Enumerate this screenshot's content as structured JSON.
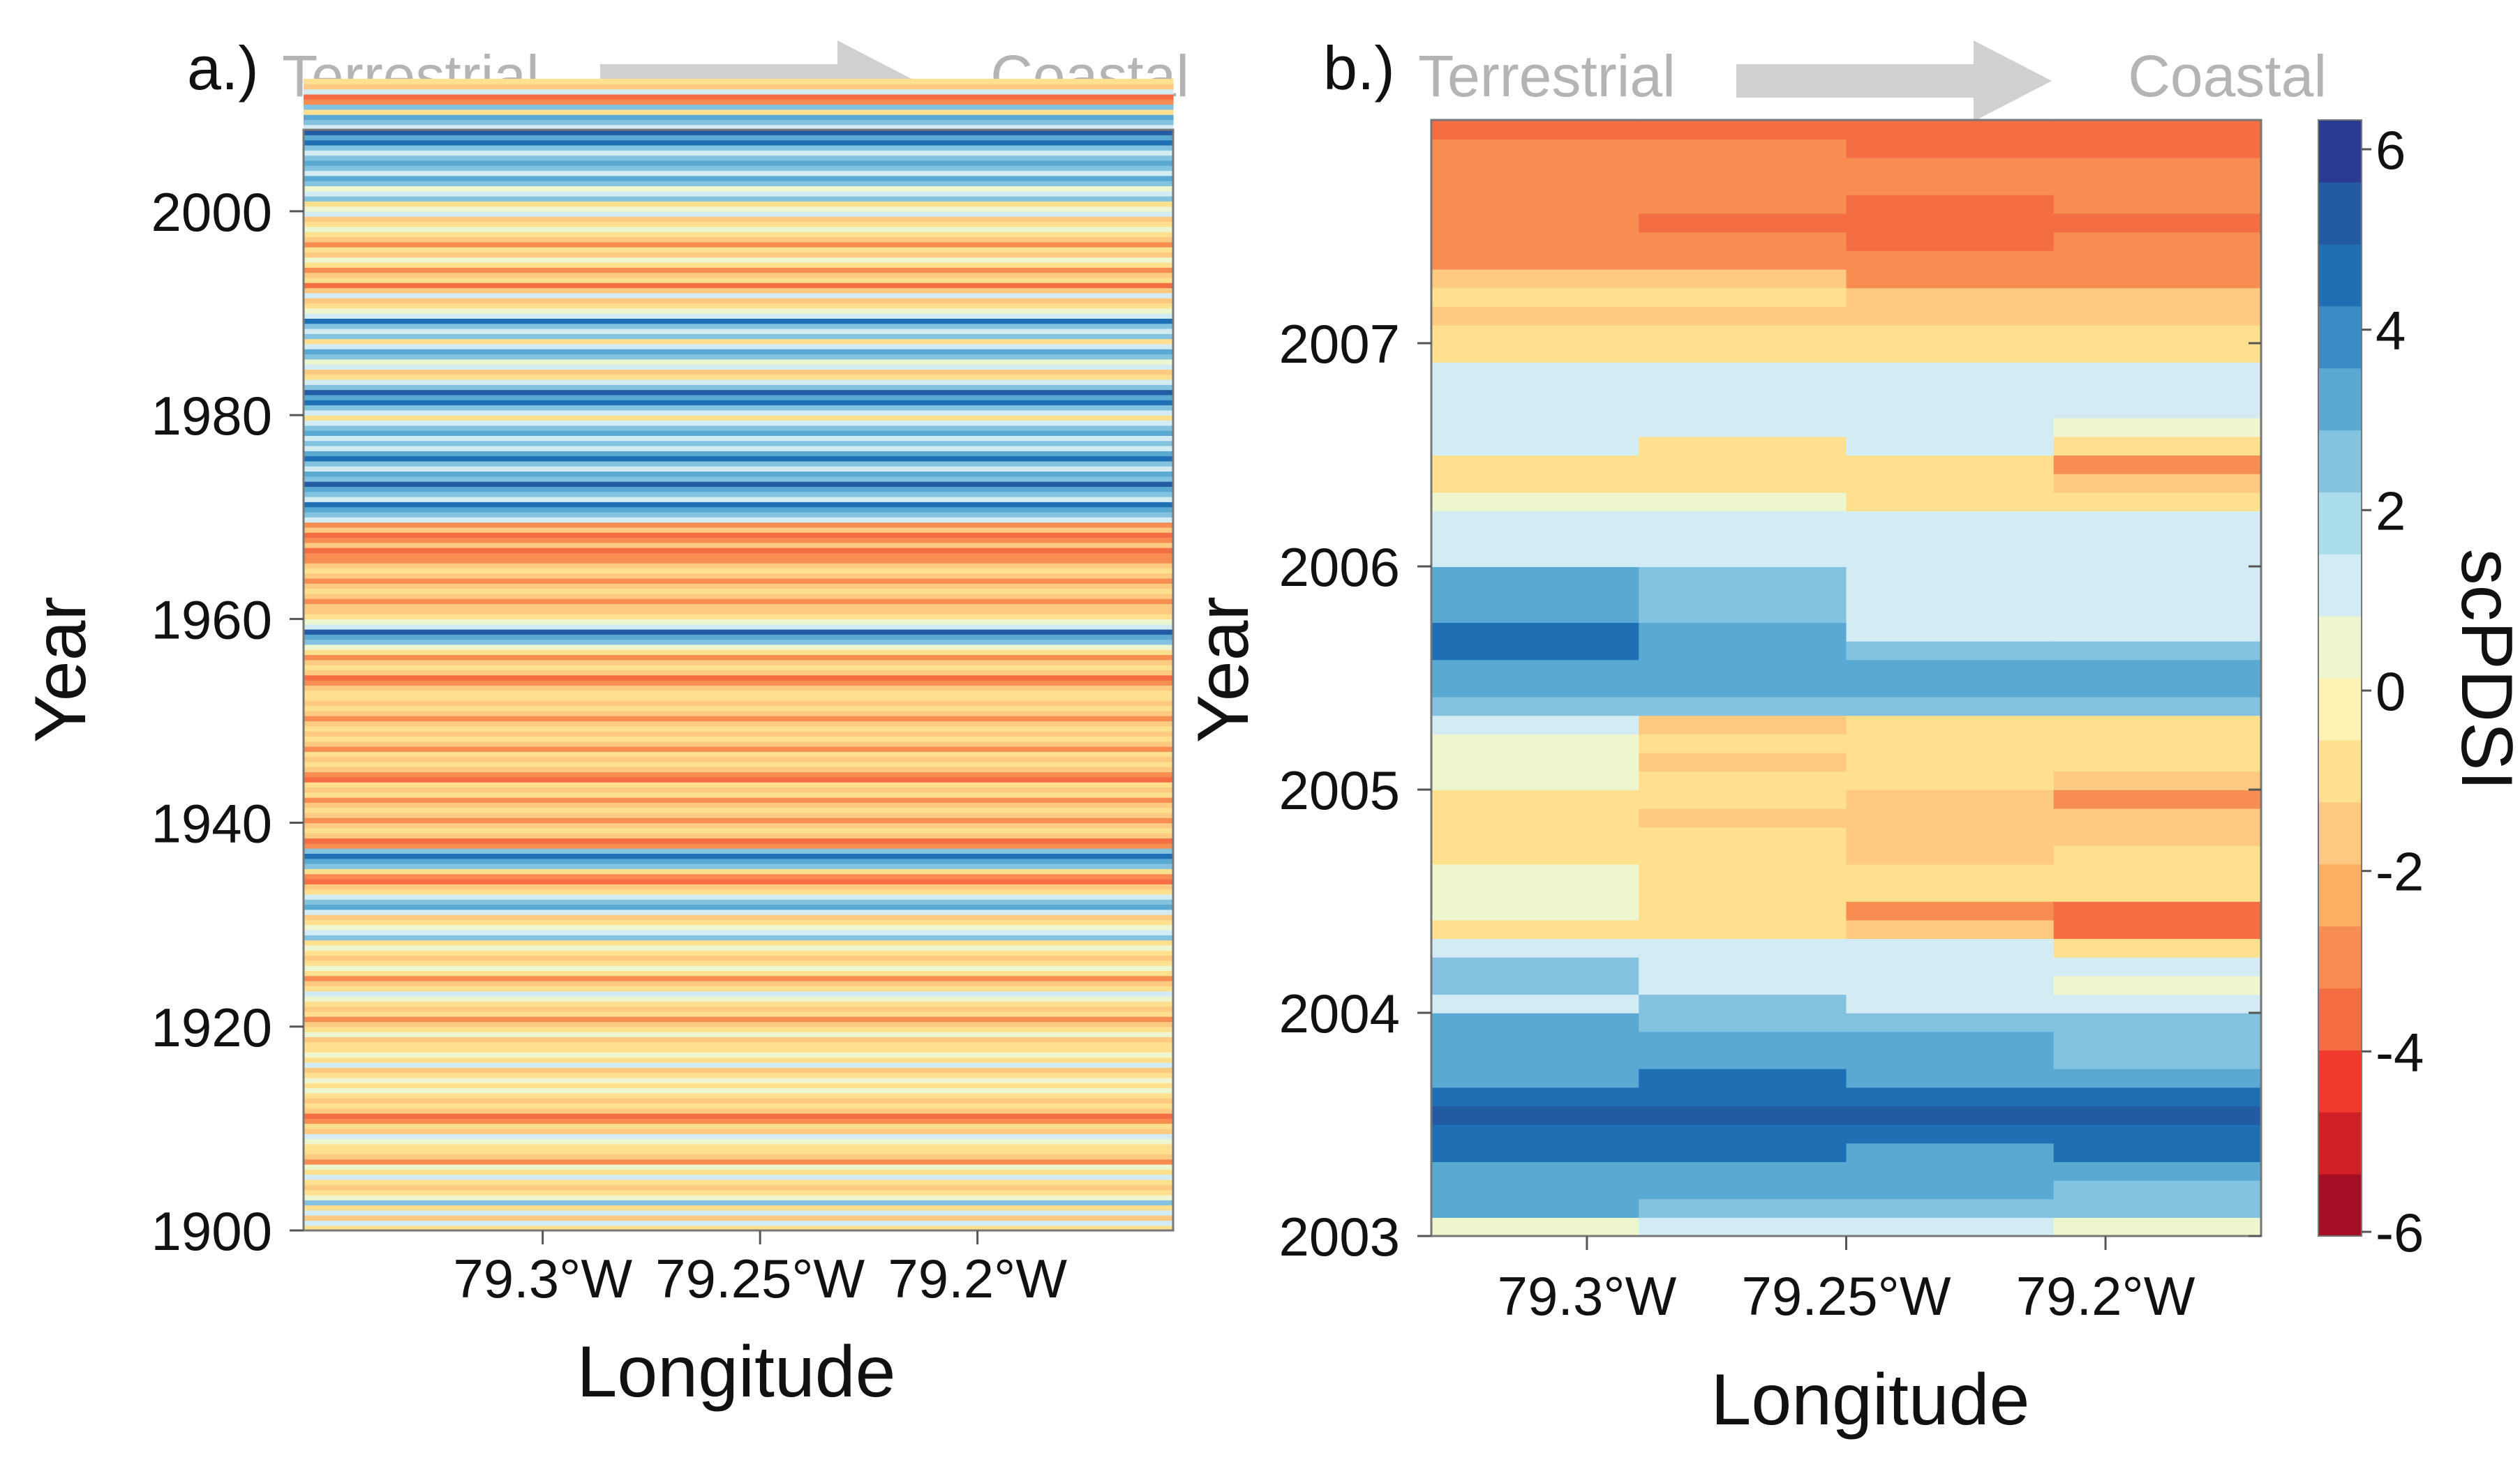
{
  "chart_data": [
    {
      "panel_label": "a.)",
      "type": "heatmap",
      "gradient_left": "Terrestrial",
      "gradient_right": "Coastal",
      "xlabel": "Longitude",
      "ylabel": "Year",
      "xticks": [
        "79.3°W",
        "79.25°W",
        "79.2°W"
      ],
      "xtick_values": [
        -79.3,
        -79.25,
        -79.2
      ],
      "xlim": [
        -79.355,
        -79.155
      ],
      "yticks": [
        "1900",
        "1920",
        "1940",
        "1960",
        "1980",
        "2000"
      ],
      "ytick_values": [
        1900,
        1920,
        1940,
        1960,
        1980,
        2000
      ],
      "ylim": [
        1900,
        2008
      ],
      "columns": 4,
      "row_start": 1900,
      "row_step": 0.5,
      "values": [
        [
          -1,
          1,
          -2,
          1,
          -1,
          2,
          0,
          -1,
          -2,
          -1,
          1,
          -1,
          0,
          -3,
          -2,
          -1,
          -1,
          0,
          1,
          -2,
          -1,
          -3,
          -4,
          -2,
          -1,
          -2,
          -1,
          0,
          -1,
          0,
          -1,
          -2,
          1,
          -1,
          0,
          -1,
          -1,
          -2,
          0,
          -1,
          -2,
          -3,
          -1,
          -2,
          -1,
          0,
          1,
          -1,
          -2,
          -3,
          -1,
          0,
          -1,
          -2,
          -1,
          0,
          -1,
          2,
          1,
          0,
          -1,
          -2,
          1,
          3,
          2,
          1,
          -1,
          -2,
          -4,
          -3,
          -1,
          2,
          3,
          4,
          2,
          -3,
          -4,
          -2,
          -1,
          -2,
          -3,
          -2,
          -1,
          -2,
          -3,
          -1,
          -2,
          -1,
          -4,
          -3,
          -2,
          -1,
          -2,
          -1,
          -3,
          -2,
          -1,
          -2,
          -1,
          -2,
          -3,
          -2,
          -1,
          -2,
          -1,
          -1,
          -2,
          -3,
          -4,
          -2,
          -1,
          -2,
          -3,
          -1,
          0,
          2,
          3,
          5,
          1,
          0,
          -1,
          -2,
          -2,
          -3,
          -2,
          -1,
          -2,
          -3,
          -2,
          -1,
          -2,
          -3,
          -3,
          -4,
          -2,
          -3,
          -4,
          -2,
          -3,
          1,
          2,
          3,
          4,
          1,
          2,
          3,
          5,
          2,
          3,
          1,
          2,
          4,
          3,
          1,
          2,
          1,
          3,
          2,
          1,
          -1,
          1,
          2,
          4,
          3,
          5,
          2,
          1,
          -1,
          -2,
          1,
          0,
          2,
          3,
          1,
          -1,
          2,
          1,
          2,
          4,
          1,
          0,
          -1,
          -2,
          1,
          -2,
          -4,
          -1,
          -2,
          -3,
          -1,
          0,
          -2,
          -1,
          -3,
          -2,
          -1,
          0,
          -1,
          -2,
          1,
          0,
          -1,
          2,
          1,
          0,
          2,
          3,
          1,
          2,
          3,
          2,
          1,
          2,
          4,
          3,
          5,
          1,
          2,
          3,
          -1,
          2,
          -3,
          -4,
          1,
          -2,
          -1
        ],
        [
          -1,
          1,
          -2,
          1,
          -1,
          2,
          0,
          -1,
          -2,
          -1,
          1,
          -1,
          0,
          -3,
          -2,
          -1,
          -1,
          0,
          1,
          -2,
          -1,
          -3,
          -4,
          -2,
          -1,
          -2,
          -1,
          0,
          -1,
          0,
          -1,
          -2,
          1,
          -1,
          0,
          -1,
          -1,
          -2,
          0,
          -1,
          -2,
          -3,
          -1,
          -2,
          -1,
          0,
          1,
          -1,
          -2,
          -3,
          -1,
          0,
          -1,
          -2,
          -1,
          0,
          -1,
          2,
          1,
          0,
          -1,
          -2,
          1,
          3,
          2,
          1,
          -1,
          -2,
          -4,
          -3,
          -1,
          2,
          3,
          4,
          2,
          -3,
          -4,
          -2,
          -1,
          -2,
          -3,
          -2,
          -1,
          -2,
          -3,
          -1,
          -2,
          -1,
          -4,
          -3,
          -2,
          -1,
          -2,
          -1,
          -3,
          -2,
          -1,
          -2,
          -1,
          -2,
          -3,
          -2,
          -1,
          -2,
          -1,
          -1,
          -2,
          -3,
          -4,
          -2,
          -1,
          -2,
          -3,
          -1,
          0,
          2,
          3,
          5,
          1,
          0,
          -1,
          -2,
          -2,
          -3,
          -2,
          -1,
          -2,
          -3,
          -2,
          -1,
          -2,
          -3,
          -3,
          -4,
          -2,
          -3,
          -4,
          -2,
          -3,
          1,
          2,
          3,
          4,
          1,
          2,
          3,
          5,
          2,
          3,
          1,
          2,
          4,
          3,
          1,
          2,
          1,
          3,
          2,
          1,
          -1,
          1,
          2,
          4,
          3,
          5,
          2,
          1,
          -1,
          -2,
          1,
          0,
          2,
          3,
          1,
          -1,
          2,
          1,
          2,
          4,
          1,
          0,
          -1,
          -2,
          1,
          -2,
          -4,
          -1,
          -2,
          -3,
          -1,
          0,
          -2,
          -1,
          -3,
          -2,
          -1,
          0,
          -1,
          -2,
          1,
          0,
          -1,
          2,
          1,
          0,
          2,
          3,
          1,
          2,
          3,
          2,
          1,
          2,
          4,
          3,
          5,
          1,
          2,
          3,
          -1,
          2,
          -3,
          -4,
          1,
          -2,
          -1
        ],
        [
          -1,
          1,
          -2,
          1,
          -1,
          2,
          0,
          -1,
          -2,
          -1,
          1,
          -1,
          0,
          -3,
          -2,
          -1,
          -1,
          0,
          1,
          -2,
          -1,
          -3,
          -4,
          -2,
          -1,
          -2,
          -1,
          0,
          -1,
          0,
          -1,
          -2,
          1,
          -1,
          0,
          -1,
          -1,
          -2,
          0,
          -1,
          -2,
          -3,
          -1,
          -2,
          -1,
          0,
          1,
          -1,
          -2,
          -3,
          -1,
          0,
          -1,
          -2,
          -1,
          0,
          -1,
          2,
          1,
          0,
          -1,
          -2,
          1,
          3,
          2,
          1,
          -1,
          -2,
          -4,
          -3,
          -1,
          2,
          3,
          4,
          2,
          -3,
          -4,
          -2,
          -1,
          -2,
          -3,
          -2,
          -1,
          -2,
          -3,
          -1,
          -2,
          -1,
          -4,
          -3,
          -2,
          -1,
          -2,
          -1,
          -3,
          -2,
          -1,
          -2,
          -1,
          -2,
          -3,
          -2,
          -1,
          -2,
          -1,
          -1,
          -2,
          -3,
          -4,
          -2,
          -1,
          -2,
          -3,
          -1,
          0,
          2,
          3,
          5,
          1,
          0,
          -1,
          -2,
          -2,
          -3,
          -2,
          -1,
          -2,
          -3,
          -2,
          -1,
          -2,
          -3,
          -3,
          -4,
          -2,
          -3,
          -4,
          -2,
          -3,
          1,
          2,
          3,
          4,
          1,
          2,
          3,
          5,
          2,
          3,
          1,
          2,
          4,
          3,
          1,
          2,
          1,
          3,
          2,
          1,
          -1,
          1,
          2,
          4,
          3,
          5,
          2,
          1,
          -1,
          -2,
          1,
          0,
          2,
          3,
          1,
          -1,
          2,
          1,
          2,
          4,
          1,
          0,
          -1,
          -2,
          1,
          -2,
          -4,
          -1,
          -2,
          -3,
          -1,
          0,
          -2,
          -1,
          -3,
          -2,
          -1,
          0,
          -1,
          -2,
          1,
          0,
          -1,
          2,
          1,
          0,
          2,
          3,
          1,
          2,
          3,
          2,
          1,
          2,
          4,
          3,
          5,
          1,
          2,
          3,
          -1,
          2,
          -3,
          -4,
          1,
          -2,
          -1
        ],
        [
          -1,
          1,
          -2,
          1,
          -1,
          2,
          0,
          -1,
          -2,
          -1,
          1,
          -1,
          0,
          -3,
          -2,
          -1,
          -1,
          0,
          1,
          -2,
          -1,
          -3,
          -4,
          -2,
          -1,
          -2,
          -1,
          0,
          -1,
          0,
          -1,
          -2,
          1,
          -1,
          0,
          -1,
          -1,
          -2,
          0,
          -1,
          -2,
          -3,
          -1,
          -2,
          -1,
          0,
          1,
          -1,
          -2,
          -3,
          -1,
          0,
          -1,
          -2,
          -1,
          0,
          -1,
          2,
          1,
          0,
          -1,
          -2,
          1,
          3,
          2,
          1,
          -1,
          -2,
          -4,
          -3,
          -1,
          2,
          3,
          4,
          2,
          -3,
          -4,
          -2,
          -1,
          -2,
          -3,
          -2,
          -1,
          -2,
          -3,
          -1,
          -2,
          -1,
          -4,
          -3,
          -2,
          -1,
          -2,
          -1,
          -3,
          -2,
          -1,
          -2,
          -1,
          -2,
          -3,
          -2,
          -1,
          -2,
          -1,
          -1,
          -2,
          -3,
          -4,
          -2,
          -1,
          -2,
          -3,
          -1,
          0,
          2,
          3,
          5,
          1,
          0,
          -1,
          -2,
          -2,
          -3,
          -2,
          -1,
          -2,
          -3,
          -2,
          -1,
          -2,
          -3,
          -3,
          -4,
          -2,
          -3,
          -4,
          -2,
          -3,
          1,
          2,
          3,
          4,
          1,
          2,
          3,
          5,
          2,
          3,
          1,
          2,
          4,
          3,
          1,
          2,
          1,
          3,
          2,
          1,
          -1,
          1,
          2,
          4,
          3,
          5,
          2,
          1,
          -1,
          -2,
          1,
          0,
          2,
          3,
          1,
          -1,
          2,
          1,
          2,
          4,
          1,
          0,
          -1,
          -2,
          1,
          -2,
          -4,
          -1,
          -2,
          -3,
          -1,
          0,
          -2,
          -1,
          -3,
          -2,
          -1,
          0,
          -1,
          -2,
          1,
          0,
          -1,
          2,
          1,
          0,
          2,
          3,
          1,
          2,
          3,
          2,
          1,
          2,
          4,
          3,
          5,
          1,
          2,
          3,
          -1,
          2,
          -3,
          -4,
          1,
          -2,
          -1
        ]
      ]
    },
    {
      "panel_label": "b.)",
      "type": "heatmap",
      "gradient_left": "Terrestrial",
      "gradient_right": "Coastal",
      "xlabel": "Longitude",
      "ylabel": "Year",
      "xticks": [
        "79.3°W",
        "79.25°W",
        "79.2°W"
      ],
      "xtick_values": [
        -79.3,
        -79.25,
        -79.2
      ],
      "xlim": [
        -79.33,
        -79.17
      ],
      "yticks": [
        "2003",
        "2004",
        "2005",
        "2006",
        "2007"
      ],
      "ytick_values": [
        2003,
        2004,
        2005,
        2006,
        2007
      ],
      "ylim": [
        2003,
        2008
      ],
      "columns": 4,
      "row_start": 2003,
      "row_step": 0.0833,
      "values": [
        [
          0,
          3,
          3,
          3,
          4,
          4,
          5,
          4,
          3,
          3,
          3,
          3,
          1,
          2,
          2,
          1,
          -1,
          0,
          0,
          0,
          -1,
          -1,
          -1,
          -1,
          0,
          0,
          0,
          1,
          2,
          3,
          3,
          4,
          4,
          3,
          3,
          3,
          1,
          1,
          1,
          0,
          -1,
          -1,
          1,
          1,
          1,
          1,
          1,
          -1,
          -1,
          -2,
          -1,
          -2,
          -3,
          -3,
          -3,
          -3,
          -3,
          -3,
          -3,
          -4
        ],
        [
          1,
          2,
          3,
          3,
          4,
          4,
          5,
          4,
          4,
          3,
          3,
          2,
          2,
          1,
          1,
          1,
          -1,
          -1,
          -1,
          -1,
          -1,
          -1,
          -2,
          -1,
          -1,
          -2,
          -1,
          -2,
          2,
          3,
          3,
          3,
          3,
          2,
          2,
          2,
          1,
          1,
          1,
          0,
          -1,
          -1,
          -1,
          1,
          1,
          1,
          1,
          -1,
          -1,
          -2,
          -1,
          -2,
          -3,
          -3,
          -4,
          -3,
          -3,
          -3,
          -3,
          -4
        ],
        [
          1,
          2,
          3,
          3,
          3,
          4,
          5,
          4,
          3,
          3,
          3,
          2,
          1,
          1,
          1,
          1,
          -2,
          -3,
          -1,
          -1,
          -2,
          -2,
          -2,
          -2,
          -1,
          -1,
          -1,
          -1,
          2,
          3,
          3,
          2,
          1,
          1,
          1,
          1,
          1,
          1,
          1,
          -1,
          -1,
          -1,
          1,
          1,
          1,
          1,
          1,
          -1,
          -1,
          -2,
          -2,
          -3,
          -3,
          -4,
          -4,
          -4,
          -3,
          -3,
          -4,
          -4
        ],
        [
          0,
          2,
          2,
          3,
          4,
          4,
          5,
          4,
          3,
          2,
          2,
          2,
          1,
          0,
          1,
          -1,
          -4,
          -4,
          -1,
          -1,
          -1,
          -2,
          -2,
          -3,
          -2,
          -1,
          -1,
          -1,
          2,
          3,
          3,
          2,
          1,
          1,
          1,
          1,
          1,
          1,
          1,
          -1,
          -2,
          -3,
          -1,
          0,
          1,
          1,
          1,
          -1,
          -1,
          -2,
          -2,
          -3,
          -3,
          -3,
          -4,
          -3,
          -3,
          -3,
          -4,
          -4
        ]
      ]
    }
  ],
  "colorbar": {
    "label": "scPDSI",
    "ticks": [
      "6",
      "4",
      "2",
      "0",
      "-2",
      "-4",
      "-6"
    ],
    "tick_values": [
      6,
      4,
      2,
      0,
      -2,
      -4,
      -6
    ],
    "range": [
      -6,
      6
    ],
    "colors": [
      "#a50f25",
      "#d11f26",
      "#ef3b2c",
      "#f46d43",
      "#f88d52",
      "#fdae61",
      "#fec980",
      "#ffe08f",
      "#fff2b3",
      "#eef6cf",
      "#d3ecf4",
      "#abdcea",
      "#84c3e0",
      "#5aa9d3",
      "#3b8bc4",
      "#1f6fb4",
      "#225aa3",
      "#2a3b93"
    ]
  }
}
